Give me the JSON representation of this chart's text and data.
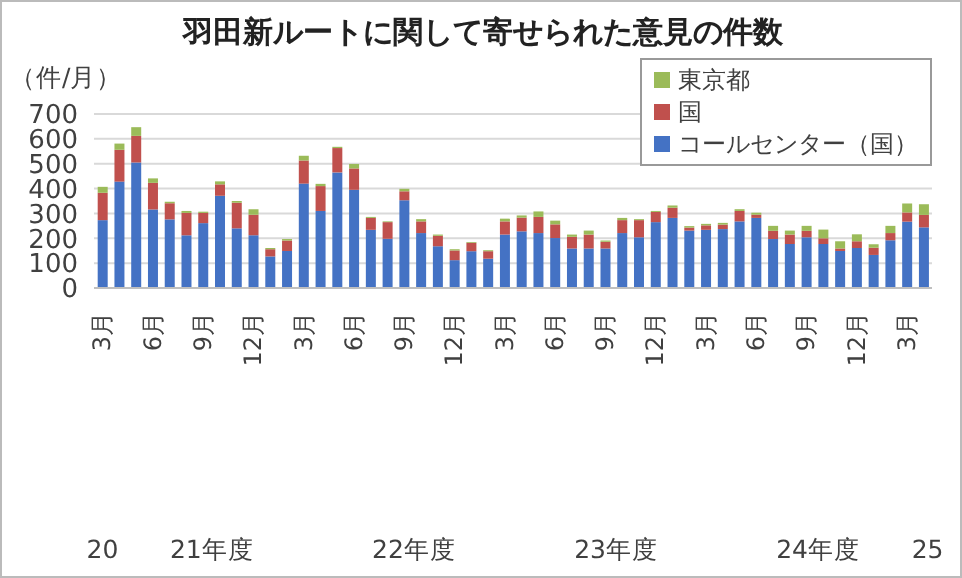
{
  "chart_data": {
    "type": "bar",
    "title": "羽田新ルートに関して寄せられた意見の件数",
    "ylabel": "（件/月）",
    "stacked": true,
    "grid": "y",
    "legend": "top right",
    "categories": [
      "3月",
      null,
      null,
      "6月",
      null,
      null,
      "9月",
      null,
      null,
      "12月",
      null,
      null,
      "3月",
      null,
      null,
      "6月",
      null,
      null,
      "9月",
      null,
      null,
      "12月",
      null,
      null,
      "3月",
      null,
      null,
      "6月",
      null,
      null,
      "9月",
      null,
      null,
      "12月",
      null,
      null,
      "3月",
      null,
      null,
      "6月",
      null,
      null,
      "9月",
      null,
      null,
      "12月",
      null,
      null,
      "3月",
      null
    ],
    "annotations": [
      "20",
      "21年度",
      "22年度",
      "23年度",
      "24年度",
      "25"
    ],
    "ylim": [
      0,
      700
    ],
    "yticks": [
      0,
      100,
      200,
      300,
      400,
      500,
      600,
      700
    ],
    "series": [
      {
        "name": "コールセンター（国）",
        "color": "#4472c4",
        "values": [
          273,
          428,
          505,
          316,
          276,
          212,
          261,
          371,
          240,
          212,
          127,
          149,
          420,
          310,
          465,
          395,
          234,
          198,
          353,
          221,
          168,
          112,
          148,
          118,
          215,
          228,
          221,
          201,
          159,
          159,
          159,
          221,
          204,
          265,
          282,
          231,
          234,
          237,
          268,
          282,
          197,
          177,
          204,
          177,
          149,
          161,
          133,
          192,
          267,
          244
        ]
      },
      {
        "name": "国",
        "color": "#c0504d",
        "values": [
          110,
          128,
          107,
          107,
          65,
          90,
          41,
          46,
          103,
          83,
          29,
          42,
          93,
          100,
          98,
          86,
          48,
          67,
          36,
          47,
          42,
          39,
          34,
          30,
          53,
          55,
          65,
          55,
          47,
          56,
          27,
          52,
          69,
          41,
          41,
          12,
          18,
          18,
          42,
          13,
          33,
          38,
          26,
          23,
          10,
          27,
          29,
          29,
          37,
          50
        ]
      },
      {
        "name": "東京都",
        "color": "#9bbb59",
        "values": [
          24,
          25,
          35,
          18,
          6,
          8,
          5,
          12,
          7,
          22,
          5,
          6,
          19,
          9,
          5,
          18,
          4,
          3,
          10,
          9,
          5,
          5,
          3,
          4,
          11,
          9,
          22,
          15,
          9,
          16,
          5,
          9,
          4,
          4,
          9,
          6,
          6,
          7,
          7,
          8,
          20,
          16,
          20,
          35,
          29,
          28,
          14,
          29,
          36,
          43
        ]
      }
    ]
  }
}
